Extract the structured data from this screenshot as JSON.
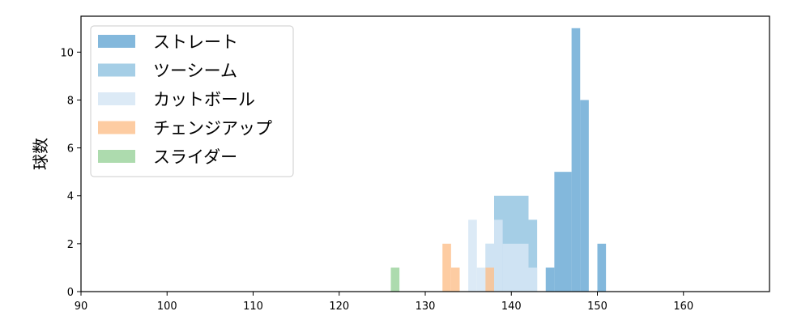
{
  "chart_data": {
    "type": "bar",
    "subtype": "histogram",
    "title": "",
    "xlabel": "",
    "ylabel": "球数",
    "xlim": [
      90,
      170
    ],
    "ylim": [
      0,
      11.5
    ],
    "xticks": [
      90,
      100,
      110,
      120,
      130,
      140,
      150,
      160
    ],
    "yticks": [
      0,
      2,
      4,
      6,
      8,
      10
    ],
    "grid": false,
    "legend_position": "top-left",
    "series": [
      {
        "name": "ストレート",
        "color": "#5aa0d0",
        "opacity": 0.75,
        "bins": [
          {
            "x0": 144.0,
            "x1": 145.0,
            "count": 1
          },
          {
            "x0": 145.0,
            "x1": 147.0,
            "count": 5
          },
          {
            "x0": 147.0,
            "x1": 148.0,
            "count": 11
          },
          {
            "x0": 148.0,
            "x1": 149.0,
            "count": 8
          },
          {
            "x0": 150.0,
            "x1": 151.0,
            "count": 2
          }
        ]
      },
      {
        "name": "ツーシーム",
        "color": "#8fc2e0",
        "opacity": 0.8,
        "bins": [
          {
            "x0": 137.0,
            "x1": 138.0,
            "count": 2
          },
          {
            "x0": 138.0,
            "x1": 142.0,
            "count": 4
          },
          {
            "x0": 142.0,
            "x1": 143.0,
            "count": 3
          }
        ]
      },
      {
        "name": "カットボール",
        "color": "#d6e6f5",
        "opacity": 0.85,
        "bins": [
          {
            "x0": 135.0,
            "x1": 136.0,
            "count": 3
          },
          {
            "x0": 136.0,
            "x1": 137.0,
            "count": 1
          },
          {
            "x0": 137.0,
            "x1": 138.0,
            "count": 2
          },
          {
            "x0": 138.0,
            "x1": 139.0,
            "count": 3
          },
          {
            "x0": 139.0,
            "x1": 142.0,
            "count": 2
          },
          {
            "x0": 142.0,
            "x1": 143.0,
            "count": 1
          }
        ]
      },
      {
        "name": "チェンジアップ",
        "color": "#fdbf8b",
        "opacity": 0.8,
        "bins": [
          {
            "x0": 132.0,
            "x1": 133.0,
            "count": 2
          },
          {
            "x0": 133.0,
            "x1": 134.0,
            "count": 1
          },
          {
            "x0": 137.0,
            "x1": 138.0,
            "count": 1
          }
        ]
      },
      {
        "name": "スライダー",
        "color": "#98d29a",
        "opacity": 0.8,
        "bins": [
          {
            "x0": 126.0,
            "x1": 127.0,
            "count": 1
          }
        ]
      }
    ]
  }
}
